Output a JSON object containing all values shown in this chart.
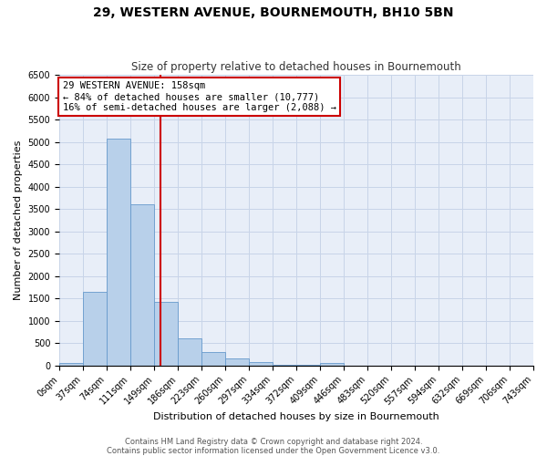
{
  "title": "29, WESTERN AVENUE, BOURNEMOUTH, BH10 5BN",
  "subtitle": "Size of property relative to detached houses in Bournemouth",
  "xlabel": "Distribution of detached houses by size in Bournemouth",
  "ylabel": "Number of detached properties",
  "bin_edges": [
    0,
    37,
    74,
    111,
    149,
    186,
    223,
    260,
    297,
    334,
    372,
    409,
    446,
    483,
    520,
    557,
    594,
    632,
    669,
    706,
    743
  ],
  "bin_counts": [
    60,
    1650,
    5080,
    3600,
    1420,
    610,
    300,
    150,
    80,
    20,
    10,
    50,
    0,
    0,
    0,
    0,
    0,
    0,
    0,
    0
  ],
  "bar_color": "#b8d0ea",
  "bar_edgecolor": "#6699cc",
  "property_size": 158,
  "vline_color": "#cc0000",
  "annotation_line1": "29 WESTERN AVENUE: 158sqm",
  "annotation_line2": "← 84% of detached houses are smaller (10,777)",
  "annotation_line3": "16% of semi-detached houses are larger (2,088) →",
  "annotation_box_edgecolor": "#cc0000",
  "annotation_box_facecolor": "#ffffff",
  "ylim_max": 6500,
  "ytick_step": 500,
  "footer_line1": "Contains HM Land Registry data © Crown copyright and database right 2024.",
  "footer_line2": "Contains public sector information licensed under the Open Government Licence v3.0.",
  "grid_color": "#c8d4e8",
  "background_color": "#e8eef8",
  "title_fontsize": 10,
  "subtitle_fontsize": 8.5,
  "axis_label_fontsize": 8,
  "tick_label_fontsize": 7,
  "annotation_fontsize": 7.5,
  "footer_fontsize": 6
}
